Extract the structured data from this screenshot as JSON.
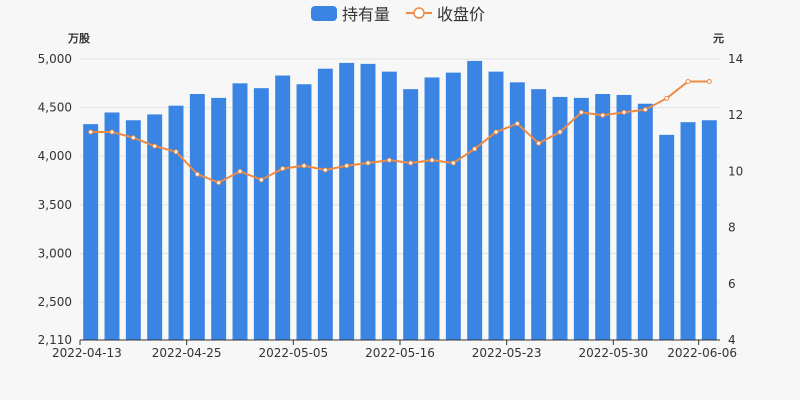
{
  "chart_data": {
    "type": "bar+line",
    "legend": {
      "position": "top-center",
      "items": [
        {
          "name": "持有量",
          "type": "bar",
          "color": "#3a84e3"
        },
        {
          "name": "收盘价",
          "type": "line",
          "color": "#ef8a44"
        }
      ]
    },
    "y_left": {
      "unit": "万股",
      "min": 2110,
      "max": 5000,
      "ticks": [
        2110,
        2500,
        3000,
        3500,
        4000,
        4500,
        5000
      ],
      "tick_labels": [
        "2,110",
        "2,500",
        "3,000",
        "3,500",
        "4,000",
        "4,500",
        "5,000"
      ]
    },
    "y_right": {
      "unit": "元",
      "min": 4,
      "max": 14,
      "ticks": [
        4,
        6,
        8,
        10,
        12,
        14
      ]
    },
    "x_tick_labels": [
      {
        "index": 0,
        "label": "2022-04-13"
      },
      {
        "index": 5,
        "label": "2022-04-25"
      },
      {
        "index": 10,
        "label": "2022-05-05"
      },
      {
        "index": 15,
        "label": "2022-05-16"
      },
      {
        "index": 20,
        "label": "2022-05-23"
      },
      {
        "index": 25,
        "label": "2022-05-30"
      },
      {
        "index": 29,
        "label": "2022-06-06"
      }
    ],
    "categories_count": 30,
    "series": [
      {
        "name": "持有量",
        "type": "bar",
        "values": [
          4330,
          4450,
          4370,
          4430,
          4520,
          4640,
          4600,
          4750,
          4700,
          4830,
          4740,
          4900,
          4960,
          4950,
          4870,
          4690,
          4810,
          4860,
          4980,
          4870,
          4760,
          4690,
          4610,
          4600,
          4640,
          4630,
          4540,
          4220,
          4350,
          4370
        ]
      },
      {
        "name": "收盘价",
        "type": "line",
        "values": [
          11.4,
          11.4,
          11.2,
          10.9,
          10.7,
          9.9,
          9.6,
          10.0,
          9.7,
          10.1,
          10.2,
          10.05,
          10.2,
          10.3,
          10.4,
          10.3,
          10.4,
          10.3,
          10.8,
          11.4,
          11.7,
          11.0,
          11.4,
          12.1,
          12.0,
          12.1,
          12.2,
          12.6,
          13.2,
          13.2
        ]
      }
    ],
    "grid": "horizontal"
  }
}
